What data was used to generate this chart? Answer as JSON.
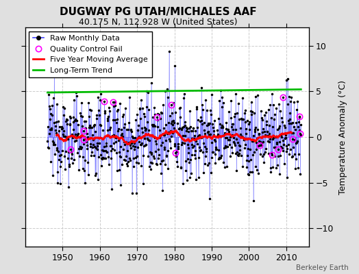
{
  "title": "DUGWAY PG UTAH/MICHALES AAF",
  "subtitle": "40.175 N, 112.928 W (United States)",
  "ylabel": "Temperature Anomaly (°C)",
  "credit": "Berkeley Earth",
  "ylim": [
    -12,
    12
  ],
  "yticks": [
    -10,
    -5,
    0,
    5,
    10
  ],
  "xlim": [
    1940,
    2016
  ],
  "xticks": [
    1950,
    1960,
    1970,
    1980,
    1990,
    2000,
    2010
  ],
  "start_year": 1946,
  "end_year": 2014,
  "seed": 12345,
  "noise_std": 2.3,
  "raw_color": "#4444ff",
  "moving_avg_color": "#ff0000",
  "trend_color": "#00bb00",
  "qc_color": "#ff00ff",
  "background_color": "#e0e0e0",
  "plot_bg_color": "#ffffff",
  "grid_color": "#cccccc"
}
